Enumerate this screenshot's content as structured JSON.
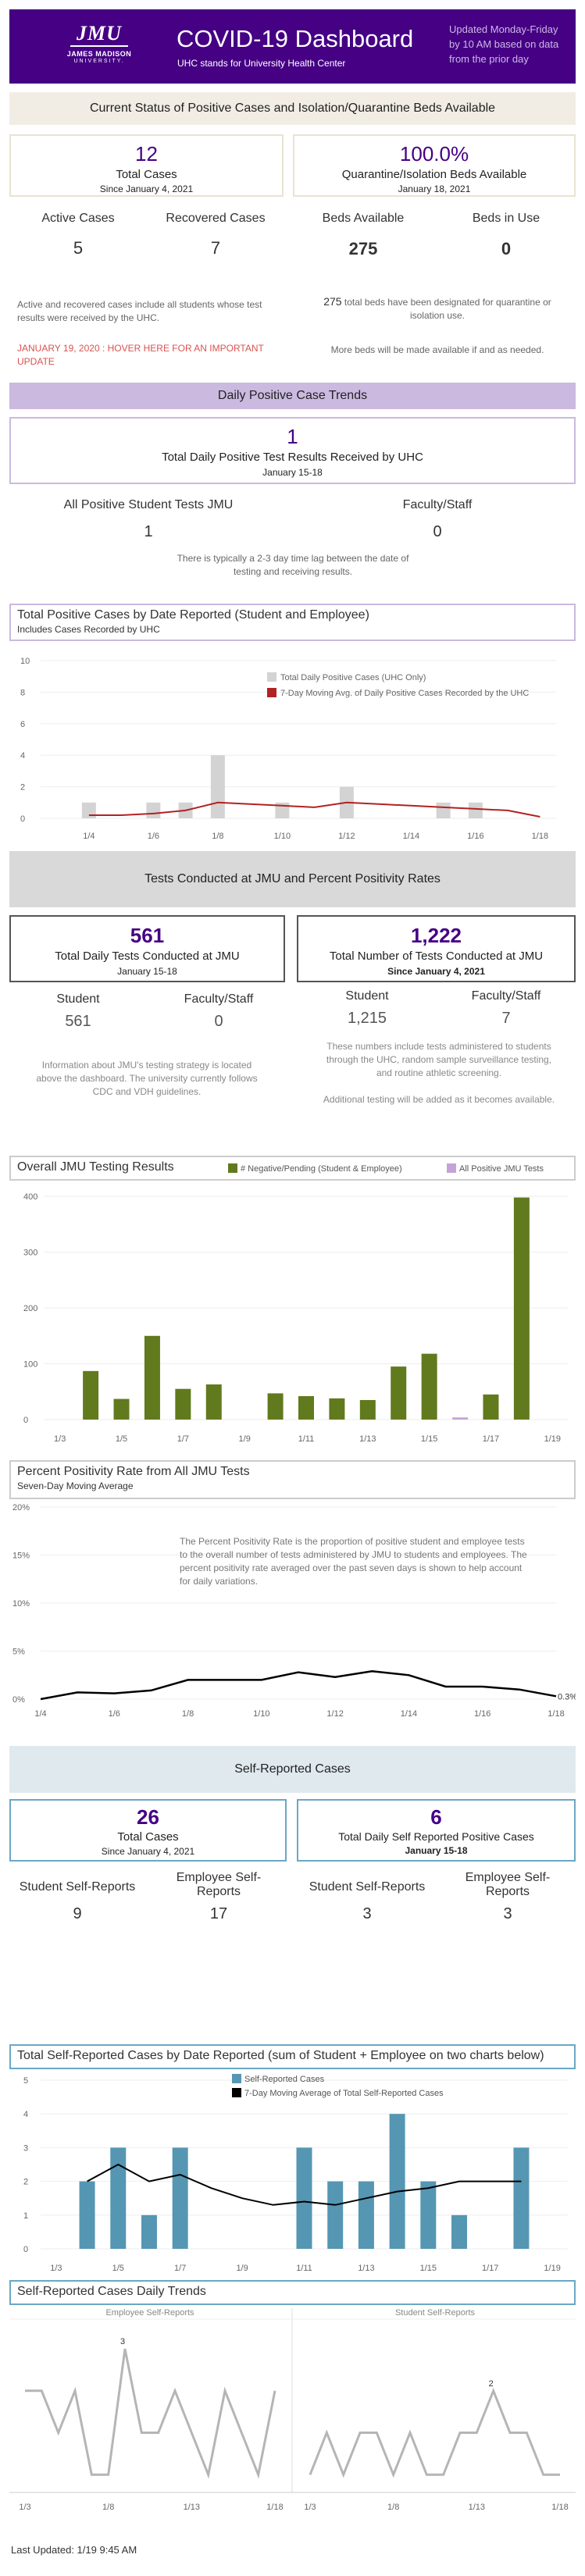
{
  "header": {
    "logo_line1": "JMU",
    "logo_line2": "JAMES MADISON",
    "logo_line3": "UNIVERSITY.",
    "title": "COVID-19 Dashboard",
    "subtitle": "UHC stands for University Health Center",
    "update_note": "Updated Monday-Friday by 10 AM based on data from the prior day"
  },
  "status_section": {
    "heading": "Current Status of Positive Cases and Isolation/Quarantine Beds Available",
    "total_cases": {
      "value": "12",
      "label": "Total Cases",
      "since": "Since January 4, 2021"
    },
    "quarantine": {
      "value": "100.0%",
      "label": "Quarantine/Isolation Beds Available",
      "date": "January 18, 2021"
    },
    "active": {
      "label": "Active Cases",
      "value": "5"
    },
    "recovered": {
      "label": "Recovered Cases",
      "value": "7"
    },
    "beds_available": {
      "label": "Beds Available",
      "value": "275"
    },
    "beds_in_use": {
      "label": "Beds in Use",
      "value": "0"
    },
    "note_left": "Active and recovered cases include all students whose test results were received by the UHC.",
    "alert": "JANUARY 19, 2020 : HOVER HERE FOR AN IMPORTANT UPDATE",
    "note_right_num": "275",
    "note_right": "total beds have been designated for quarantine or isolation use.",
    "note_right2": "More beds will be made available if and as needed.",
    "alert_color": "#d9534f"
  },
  "daily_section": {
    "heading": "Daily Positive Case Trends",
    "value": "1",
    "label": "Total Daily Positive Test Results Received by UHC",
    "date": "January 15-18",
    "students_label": "All  Positive Student Tests JMU",
    "students_value": "1",
    "faculty_label": "Faculty/Staff",
    "faculty_value": "0",
    "note": "There is typically a 2-3 day time lag between the date of testing and receiving results."
  },
  "chart1_title": {
    "title": "Total Positive Cases by Date Reported (Student and Employee)",
    "subtitle": "Includes Cases Recorded by UHC"
  },
  "tests_section": {
    "heading": "Tests Conducted at JMU and Percent Positivity Rates",
    "daily": {
      "value": "561",
      "label": "Total Daily Tests Conducted at JMU",
      "date": "January 15-18"
    },
    "total": {
      "value": "1,222",
      "label": "Total Number of Tests Conducted at JMU",
      "date": "Since January 4, 2021"
    },
    "student_label": "Student",
    "student_daily": "561",
    "faculty_label": "Faculty/Staff",
    "faculty_daily": "0",
    "student_total": "1,215",
    "faculty_total": "7",
    "note_left": "Information about JMU's testing strategy is located above the dashboard. The university currently follows CDC and VDH guidelines.",
    "note_right": "These numbers include tests administered to students through the UHC, random sample surveillance testing, and routine athletic screening.",
    "note_right2": "Additional testing will be added as it becomes available."
  },
  "chart2_title": {
    "title": "Overall JMU Testing Results"
  },
  "chart3_title": {
    "title": "Percent Positivity Rate from All JMU Tests",
    "subtitle": "Seven-Day Moving Average"
  },
  "chart3_note": "The Percent Positivity Rate is the proportion of positive student and employee tests to the overall number of tests administered by JMU to students and employees.  The percent positivity rate averaged over the past seven days is shown to help account for daily variations.",
  "self_section": {
    "heading": "Self-Reported Cases",
    "total": {
      "value": "26",
      "label": "Total Cases",
      "since": "Since January 4, 2021"
    },
    "daily": {
      "value": "6",
      "label": "Total Daily Self Reported Positive Cases",
      "date": "January 15-18"
    },
    "student_label": "Student Self-Reports",
    "employee_label": "Employee Self-Reports",
    "student_total": "9",
    "employee_total": "17",
    "student_daily": "3",
    "employee_daily": "3"
  },
  "chart4_title": {
    "title": "Total Self-Reported Cases by Date Reported (sum of Student + Employee on two charts below)"
  },
  "chart5_title": {
    "title": "Self-Reported Cases Daily Trends"
  },
  "footer": {
    "last_updated": "Last Updated: 1/19 9:45 AM"
  },
  "colors": {
    "purple": "#450084",
    "gold_band": "#f2ede4",
    "lavender": "#cbb9e0",
    "gray_band": "#d9d9d9",
    "blue_band": "#dfe9ee",
    "green": "#617a1d",
    "red": "#b22222",
    "steel": "#5596b3"
  },
  "chart_data": [
    {
      "type": "bar",
      "x": [
        "1/3",
        "1/4",
        "1/5",
        "1/6",
        "1/7",
        "1/8",
        "1/9",
        "1/10",
        "1/11",
        "1/12",
        "1/13",
        "1/14",
        "1/15",
        "1/16",
        "1/17",
        "1/18"
      ],
      "x_ticks": [
        "1/4",
        "1/6",
        "1/8",
        "1/10",
        "1/12",
        "1/14",
        "1/16",
        "1/18"
      ],
      "series": [
        {
          "name": "Total Daily Positive Cases (UHC Only)",
          "values": [
            0,
            1,
            0,
            1,
            1,
            4,
            0,
            1,
            0,
            2,
            0,
            0,
            1,
            1,
            0,
            0
          ],
          "color": "#d3d3d3"
        },
        {
          "name": "7-Day Moving Avg. of Daily Positive Cases Recorded by the UHC",
          "kind": "line",
          "values": [
            null,
            0.2,
            0.2,
            0.3,
            0.5,
            1.0,
            0.9,
            0.8,
            0.7,
            1.0,
            0.9,
            0.8,
            0.7,
            0.6,
            0.5,
            0.1
          ],
          "color": "#b22222"
        }
      ],
      "ylim": [
        0,
        10
      ],
      "yticks": [
        0,
        2,
        4,
        6,
        8,
        10
      ],
      "legend": "top-right"
    },
    {
      "type": "bar",
      "x": [
        "1/3",
        "1/4",
        "1/5",
        "1/6",
        "1/7",
        "1/8",
        "1/9",
        "1/10",
        "1/11",
        "1/12",
        "1/13",
        "1/14",
        "1/15",
        "1/16",
        "1/17",
        "1/18",
        "1/19"
      ],
      "x_ticks": [
        "1/3",
        "1/5",
        "1/7",
        "1/9",
        "1/11",
        "1/13",
        "1/15",
        "1/17",
        "1/19"
      ],
      "series": [
        {
          "name": "# Negative/Pending (Student & Employee)",
          "values": [
            0,
            87,
            37,
            150,
            55,
            63,
            0,
            47,
            42,
            38,
            35,
            95,
            118,
            0,
            45,
            398,
            0
          ],
          "color": "#617a1d"
        },
        {
          "name": "All Positive JMU Tests",
          "values": [
            0,
            0,
            0,
            0,
            0,
            0,
            0,
            0,
            0,
            0,
            0,
            0,
            0,
            1,
            0,
            0,
            0
          ],
          "color": "#c5a3d6"
        }
      ],
      "ylim": [
        0,
        410
      ],
      "yticks": [
        0,
        100,
        200,
        300,
        400
      ],
      "legend": "top"
    },
    {
      "type": "line",
      "x": [
        "1/4",
        "1/5",
        "1/6",
        "1/7",
        "1/8",
        "1/9",
        "1/10",
        "1/11",
        "1/12",
        "1/13",
        "1/14",
        "1/15",
        "1/16",
        "1/17",
        "1/18"
      ],
      "x_ticks": [
        "1/4",
        "1/6",
        "1/8",
        "1/10",
        "1/12",
        "1/14",
        "1/16",
        "1/18"
      ],
      "series": [
        {
          "name": "",
          "values": [
            0.0,
            0.7,
            0.6,
            0.9,
            2.0,
            2.0,
            2.0,
            2.8,
            2.3,
            2.9,
            2.5,
            1.3,
            1.3,
            1.0,
            0.3
          ],
          "color": "#000000"
        }
      ],
      "end_label": "0.3%",
      "ylim": [
        0,
        20
      ],
      "yticks": [
        "0%",
        "5%",
        "10%",
        "15%",
        "20%"
      ]
    },
    {
      "type": "bar",
      "x": [
        "1/3",
        "1/4",
        "1/5",
        "1/6",
        "1/7",
        "1/8",
        "1/9",
        "1/10",
        "1/11",
        "1/12",
        "1/13",
        "1/14",
        "1/15",
        "1/16",
        "1/17",
        "1/18",
        "1/19"
      ],
      "x_ticks": [
        "1/3",
        "1/5",
        "1/7",
        "1/9",
        "1/11",
        "1/13",
        "1/15",
        "1/17",
        "1/19"
      ],
      "series": [
        {
          "name": "Self-Reported Cases",
          "values": [
            0,
            2,
            3,
            1,
            3,
            0,
            0,
            0,
            3,
            2,
            2,
            4,
            2,
            1,
            0,
            3,
            0
          ],
          "color": "#5596b3"
        },
        {
          "name": "7-Day Moving Average of Total Self-Reported Cases",
          "kind": "line",
          "values": [
            null,
            2.0,
            2.5,
            2.0,
            2.2,
            1.8,
            1.5,
            1.3,
            1.4,
            1.3,
            1.5,
            1.7,
            1.8,
            2.0,
            2.0,
            2.0,
            null
          ],
          "color": "#000000"
        }
      ],
      "ylim": [
        0,
        5
      ],
      "yticks": [
        0,
        1,
        2,
        3,
        4,
        5
      ],
      "legend": "top"
    },
    {
      "type": "line",
      "title": "Employee Self-Reports",
      "x": [
        "1/3",
        "1/4",
        "1/5",
        "1/6",
        "1/7",
        "1/8",
        "1/9",
        "1/10",
        "1/11",
        "1/12",
        "1/13",
        "1/14",
        "1/15",
        "1/16",
        "1/17",
        "1/18"
      ],
      "x_ticks": [
        "1/3",
        "1/8",
        "1/13",
        "1/18"
      ],
      "series": [
        {
          "name": "Employee Self-Reports",
          "values": [
            2,
            2,
            1,
            2,
            0,
            0,
            3,
            1,
            1,
            2,
            1,
            0,
            2,
            1,
            0,
            2
          ],
          "color": "#b5b5b5"
        }
      ],
      "max_label": "3",
      "ylim": [
        -0.2,
        3.3
      ]
    },
    {
      "type": "line",
      "title": "Student Self-Reports",
      "x": [
        "1/3",
        "1/4",
        "1/5",
        "1/6",
        "1/7",
        "1/8",
        "1/9",
        "1/10",
        "1/11",
        "1/12",
        "1/13",
        "1/14",
        "1/15",
        "1/16",
        "1/17",
        "1/18"
      ],
      "x_ticks": [
        "1/3",
        "1/8",
        "1/13",
        "1/18"
      ],
      "series": [
        {
          "name": "Student Self-Reports",
          "values": [
            0,
            1,
            0,
            1,
            1,
            0,
            1,
            0,
            0,
            1,
            1,
            2,
            1,
            1,
            0,
            0
          ],
          "color": "#b5b5b5"
        }
      ],
      "max_label": "2",
      "ylim": [
        -0.2,
        3.3
      ]
    }
  ]
}
